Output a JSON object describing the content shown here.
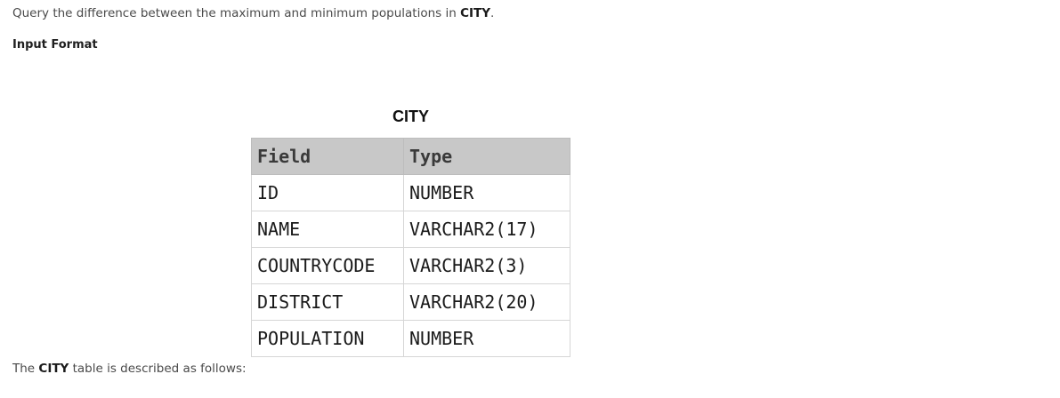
{
  "problem": {
    "prefix": "Query the difference between the maximum and minimum populations in ",
    "table_name": "CITY",
    "suffix": "."
  },
  "section_heading": "Input Format",
  "schema_table": {
    "caption": "CITY",
    "headers": [
      "Field",
      "Type"
    ],
    "rows": [
      [
        "ID",
        "NUMBER"
      ],
      [
        "NAME",
        "VARCHAR2(17)"
      ],
      [
        "COUNTRYCODE",
        "VARCHAR2(3)"
      ],
      [
        "DISTRICT",
        "VARCHAR2(20)"
      ],
      [
        "POPULATION",
        "NUMBER"
      ]
    ]
  },
  "description": {
    "prefix": "The ",
    "table_name": "CITY",
    "suffix": " table is described as follows:"
  }
}
